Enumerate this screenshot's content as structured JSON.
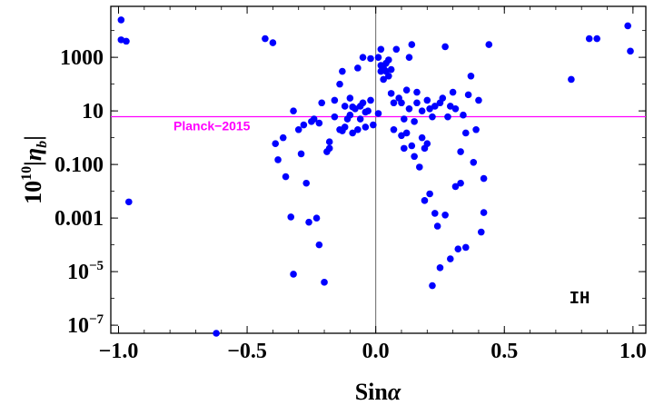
{
  "chart_data": {
    "type": "scatter",
    "xlabel": "Sin",
    "xlabel_symbol": "α",
    "ylabel_prefix": "10",
    "ylabel_exp": "10",
    "ylabel_symbol": "|η",
    "ylabel_sub": "b",
    "ylabel_suffix": "|",
    "y_scale": "log10",
    "xlim": [
      -1.03,
      1.05
    ],
    "ylim": [
      5e-08,
      80000
    ],
    "x_ticks": [
      {
        "value": -1.0,
        "label": "−1.0"
      },
      {
        "value": -0.5,
        "label": "−0.5"
      },
      {
        "value": 0.0,
        "label": "0.0"
      },
      {
        "value": 0.5,
        "label": "0.5"
      },
      {
        "value": 1.0,
        "label": "1.0"
      }
    ],
    "y_ticks": [
      {
        "value": 1e-07,
        "base": "10",
        "exp": "−7"
      },
      {
        "value": 1e-05,
        "base": "10",
        "exp": "−5"
      },
      {
        "value": 0.001,
        "label": "0.001"
      },
      {
        "value": 0.1,
        "label": "0.100"
      },
      {
        "value": 10,
        "label": "10"
      },
      {
        "value": 1000,
        "label": "1000"
      }
    ],
    "reference_line": {
      "name": "Planck−2015",
      "y": 6.1,
      "color": "#ff00ff"
    },
    "corner_label": "IH",
    "point_color": "#0000ff",
    "points": [
      [
        -0.99,
        25000
      ],
      [
        -0.99,
        4500
      ],
      [
        -0.97,
        4000
      ],
      [
        -0.96,
        0.004
      ],
      [
        -0.62,
        5e-08
      ],
      [
        -0.43,
        5000
      ],
      [
        -0.4,
        3500
      ],
      [
        -0.39,
        0.6
      ],
      [
        -0.38,
        0.15
      ],
      [
        -0.36,
        1.0
      ],
      [
        -0.35,
        0.035
      ],
      [
        -0.33,
        0.0011
      ],
      [
        -0.32,
        8e-06
      ],
      [
        -0.32,
        10
      ],
      [
        -0.3,
        2.0
      ],
      [
        -0.29,
        0.25
      ],
      [
        -0.28,
        3.0
      ],
      [
        -0.27,
        0.02
      ],
      [
        -0.26,
        0.0007
      ],
      [
        -0.25,
        4.0
      ],
      [
        -0.24,
        5.0
      ],
      [
        -0.23,
        0.001
      ],
      [
        -0.22,
        3.5
      ],
      [
        -0.22,
        0.0001
      ],
      [
        -0.21,
        20
      ],
      [
        -0.2,
        4e-06
      ],
      [
        -0.19,
        0.3
      ],
      [
        -0.18,
        0.4
      ],
      [
        -0.18,
        0.7
      ],
      [
        -0.16,
        25
      ],
      [
        -0.16,
        6.0
      ],
      [
        -0.14,
        100
      ],
      [
        -0.14,
        2.0
      ],
      [
        -0.13,
        300
      ],
      [
        -0.13,
        1.8
      ],
      [
        -0.12,
        15
      ],
      [
        -0.12,
        2.5
      ],
      [
        -0.11,
        5.0
      ],
      [
        -0.1,
        30
      ],
      [
        -0.1,
        7.0
      ],
      [
        -0.09,
        14
      ],
      [
        -0.09,
        1.5
      ],
      [
        -0.08,
        12
      ],
      [
        -0.07,
        2.0
      ],
      [
        -0.07,
        400
      ],
      [
        -0.06,
        5.0
      ],
      [
        -0.06,
        15
      ],
      [
        -0.05,
        1000
      ],
      [
        -0.05,
        20
      ],
      [
        -0.04,
        2.5
      ],
      [
        -0.04,
        9.0
      ],
      [
        -0.03,
        10
      ],
      [
        -0.02,
        25
      ],
      [
        -0.02,
        900
      ],
      [
        -0.01,
        3.0
      ],
      [
        0.01,
        1000
      ],
      [
        0.01,
        8.0
      ],
      [
        0.02,
        2000
      ],
      [
        0.02,
        500
      ],
      [
        0.02,
        300
      ],
      [
        0.03,
        150
      ],
      [
        0.03,
        400
      ],
      [
        0.04,
        300
      ],
      [
        0.04,
        600
      ],
      [
        0.05,
        200
      ],
      [
        0.05,
        800
      ],
      [
        0.06,
        350
      ],
      [
        0.06,
        45
      ],
      [
        0.07,
        20
      ],
      [
        0.07,
        2.0
      ],
      [
        0.08,
        2000
      ],
      [
        0.09,
        30
      ],
      [
        0.1,
        20
      ],
      [
        0.1,
        1.2
      ],
      [
        0.11,
        0.4
      ],
      [
        0.11,
        5.0
      ],
      [
        0.12,
        60
      ],
      [
        0.12,
        1.5
      ],
      [
        0.13,
        1000
      ],
      [
        0.13,
        12
      ],
      [
        0.14,
        0.5
      ],
      [
        0.14,
        3000
      ],
      [
        0.15,
        0.2
      ],
      [
        0.15,
        4.0
      ],
      [
        0.16,
        20
      ],
      [
        0.16,
        50
      ],
      [
        0.17,
        0.08
      ],
      [
        0.18,
        1.0
      ],
      [
        0.18,
        10
      ],
      [
        0.19,
        0.4
      ],
      [
        0.19,
        0.0045
      ],
      [
        0.2,
        0.6
      ],
      [
        0.2,
        25
      ],
      [
        0.21,
        12
      ],
      [
        0.21,
        0.008
      ],
      [
        0.22,
        6.0
      ],
      [
        0.22,
        3e-06
      ],
      [
        0.23,
        0.0015
      ],
      [
        0.23,
        15
      ],
      [
        0.24,
        0.0005
      ],
      [
        0.25,
        1.4e-05
      ],
      [
        0.25,
        20
      ],
      [
        0.26,
        30
      ],
      [
        0.27,
        2500
      ],
      [
        0.27,
        0.0013
      ],
      [
        0.28,
        6.0
      ],
      [
        0.29,
        15
      ],
      [
        0.29,
        3e-05
      ],
      [
        0.3,
        50
      ],
      [
        0.31,
        12
      ],
      [
        0.31,
        0.015
      ],
      [
        0.32,
        7e-05
      ],
      [
        0.33,
        0.02
      ],
      [
        0.33,
        0.3
      ],
      [
        0.34,
        7.0
      ],
      [
        0.35,
        8e-05
      ],
      [
        0.35,
        1.5
      ],
      [
        0.36,
        40
      ],
      [
        0.37,
        200
      ],
      [
        0.38,
        0.12
      ],
      [
        0.39,
        2.0
      ],
      [
        0.4,
        25
      ],
      [
        0.41,
        0.0003
      ],
      [
        0.42,
        0.0016
      ],
      [
        0.42,
        0.03
      ],
      [
        0.44,
        3000
      ],
      [
        0.76,
        150
      ],
      [
        0.83,
        5000
      ],
      [
        0.86,
        5000
      ],
      [
        0.98,
        15000
      ],
      [
        0.99,
        1700
      ]
    ]
  }
}
